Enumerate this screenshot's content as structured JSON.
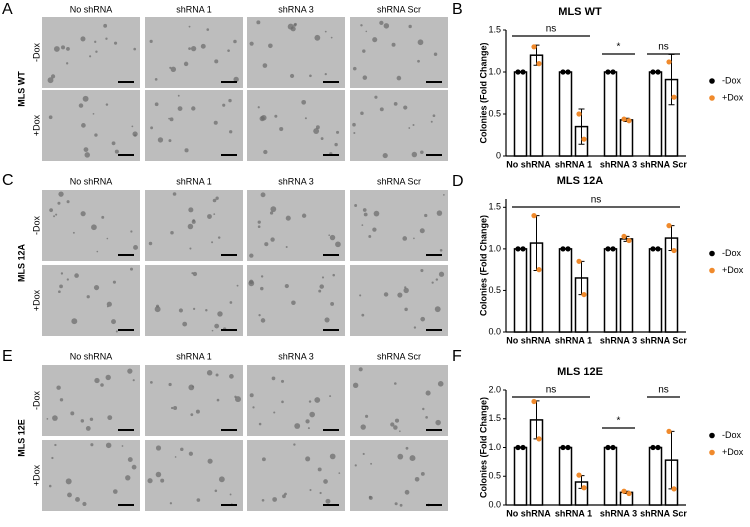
{
  "image_panels": [
    {
      "label": "A",
      "title": "MLS WT",
      "columns": [
        "No shRNA",
        "shRNA 1",
        "shRNA 3",
        "shRNA Scr"
      ],
      "rows": [
        "-Dox",
        "+Dox"
      ]
    },
    {
      "label": "C",
      "title": "MLS 12A",
      "columns": [
        "No shRNA",
        "shRNA 1",
        "shRNA 3",
        "shRNA Scr"
      ],
      "rows": [
        "-Dox",
        "+Dox"
      ]
    },
    {
      "label": "E",
      "title": "MLS 12E",
      "columns": [
        "No shRNA",
        "shRNA 1",
        "shRNA 3",
        "shRNA Scr"
      ],
      "rows": [
        "-Dox",
        "+Dox"
      ]
    }
  ],
  "chart_labels": [
    "B",
    "D",
    "F"
  ],
  "chart_data": [
    {
      "type": "bar",
      "title": "MLS WT",
      "y_label": "Colonies (Fold Change)",
      "categories": [
        "No shRNA",
        "shRNA 1",
        "shRNA 3",
        "shRNA Scr"
      ],
      "series": [
        {
          "name": "-Dox",
          "color": "#000000",
          "values": [
            1,
            1,
            1,
            1
          ],
          "points": [
            [
              1,
              1
            ],
            [
              1,
              1
            ],
            [
              1,
              1
            ],
            [
              1,
              1
            ]
          ]
        },
        {
          "name": "+Dox",
          "color": "#f08a2c",
          "values": [
            1.2,
            0.35,
            0.43,
            0.91
          ],
          "errors": [
            0.12,
            0.21,
            0.02,
            0.3
          ],
          "points": [
            [
              1.3,
              1.1
            ],
            [
              0.5,
              0.2
            ],
            [
              0.44,
              0.42
            ],
            [
              1.12,
              0.7
            ]
          ]
        }
      ],
      "ylim": [
        0,
        1.5
      ],
      "yticks": [
        0,
        0.5,
        {
          "value": 1,
          "label": "1.0"
        },
        1.5
      ],
      "annotations": [
        "ns",
        "*",
        "ns"
      ]
    },
    {
      "type": "bar",
      "title": "MLS 12A",
      "y_label": "Colonies (Fold Change)",
      "categories": [
        "No shRNA",
        "shRNA 1",
        "shRNA 3",
        "shRNA Scr"
      ],
      "series": [
        {
          "name": "-Dox",
          "color": "#000000",
          "values": [
            1,
            1,
            1,
            1
          ],
          "points": [
            [
              1,
              1
            ],
            [
              1,
              1
            ],
            [
              1,
              1
            ],
            [
              1,
              1
            ]
          ]
        },
        {
          "name": "+Dox",
          "color": "#f08a2c",
          "values": [
            1.07,
            0.65,
            1.12,
            1.13
          ],
          "errors": [
            0.33,
            0.2,
            0.03,
            0.15
          ],
          "points": [
            [
              1.4,
              0.75
            ],
            [
              0.85,
              0.45
            ],
            [
              1.15,
              1.1
            ],
            [
              1.28,
              0.98
            ]
          ]
        }
      ],
      "ylim": [
        0,
        1.6
      ],
      "yticks": [
        {
          "value": 0,
          "label": "0.0"
        },
        0.5,
        {
          "value": 1,
          "label": "1.0"
        },
        1.5
      ],
      "annotations": [
        "ns"
      ]
    },
    {
      "type": "bar",
      "title": "MLS 12E",
      "y_label": "Colonies (Fold Change)",
      "categories": [
        "No shRNA",
        "shRNA 1",
        "shRNA 3",
        "shRNA Scr"
      ],
      "series": [
        {
          "name": "-Dox",
          "color": "#000000",
          "values": [
            1,
            1,
            1,
            1
          ],
          "points": [
            [
              1,
              1
            ],
            [
              1,
              1
            ],
            [
              1,
              1
            ],
            [
              1,
              1
            ]
          ]
        },
        {
          "name": "+Dox",
          "color": "#f08a2c",
          "values": [
            1.48,
            0.4,
            0.22,
            0.78
          ],
          "errors": [
            0.33,
            0.11,
            0.02,
            0.5
          ],
          "points": [
            [
              1.8,
              1.15
            ],
            [
              0.52,
              0.3
            ],
            [
              0.24,
              0.2
            ],
            [
              1.28,
              0.28
            ]
          ]
        }
      ],
      "ylim": [
        0,
        2
      ],
      "yticks": [
        {
          "value": 0,
          "label": "0.0"
        },
        0.5,
        {
          "value": 1,
          "label": "1.0"
        },
        1.5,
        {
          "value": 2,
          "label": "2.0"
        }
      ],
      "annotations": [
        "ns",
        "*",
        "ns"
      ]
    }
  ]
}
